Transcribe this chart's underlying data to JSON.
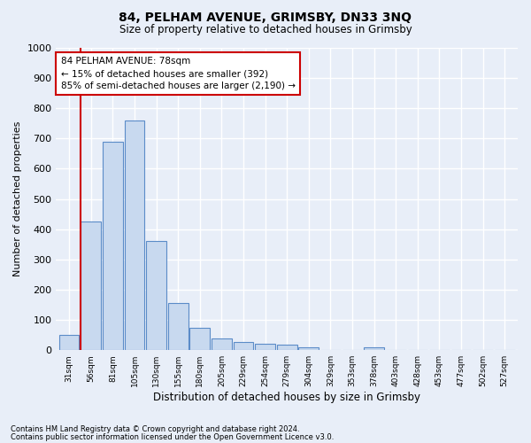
{
  "title": "84, PELHAM AVENUE, GRIMSBY, DN33 3NQ",
  "subtitle": "Size of property relative to detached houses in Grimsby",
  "xlabel": "Distribution of detached houses by size in Grimsby",
  "ylabel": "Number of detached properties",
  "bin_labels": [
    "31sqm",
    "56sqm",
    "81sqm",
    "105sqm",
    "130sqm",
    "155sqm",
    "180sqm",
    "205sqm",
    "229sqm",
    "254sqm",
    "279sqm",
    "304sqm",
    "329sqm",
    "353sqm",
    "378sqm",
    "403sqm",
    "428sqm",
    "453sqm",
    "477sqm",
    "502sqm",
    "527sqm"
  ],
  "bar_values": [
    50,
    425,
    690,
    760,
    360,
    155,
    75,
    40,
    28,
    20,
    18,
    10,
    0,
    0,
    10,
    0,
    0,
    0,
    0,
    0,
    0
  ],
  "bar_color": "#c8d9ef",
  "bar_edge_color": "#5b8cc8",
  "vline_color": "#cc0000",
  "annotation_text": "84 PELHAM AVENUE: 78sqm\n← 15% of detached houses are smaller (392)\n85% of semi-detached houses are larger (2,190) →",
  "annotation_box_color": "#ffffff",
  "annotation_box_edgecolor": "#cc0000",
  "ylim": [
    0,
    1000
  ],
  "yticks": [
    0,
    100,
    200,
    300,
    400,
    500,
    600,
    700,
    800,
    900,
    1000
  ],
  "footer_line1": "Contains HM Land Registry data © Crown copyright and database right 2024.",
  "footer_line2": "Contains public sector information licensed under the Open Government Licence v3.0.",
  "bg_color": "#e8eef8",
  "plot_bg_color": "#e8eef8",
  "grid_color": "#ffffff"
}
